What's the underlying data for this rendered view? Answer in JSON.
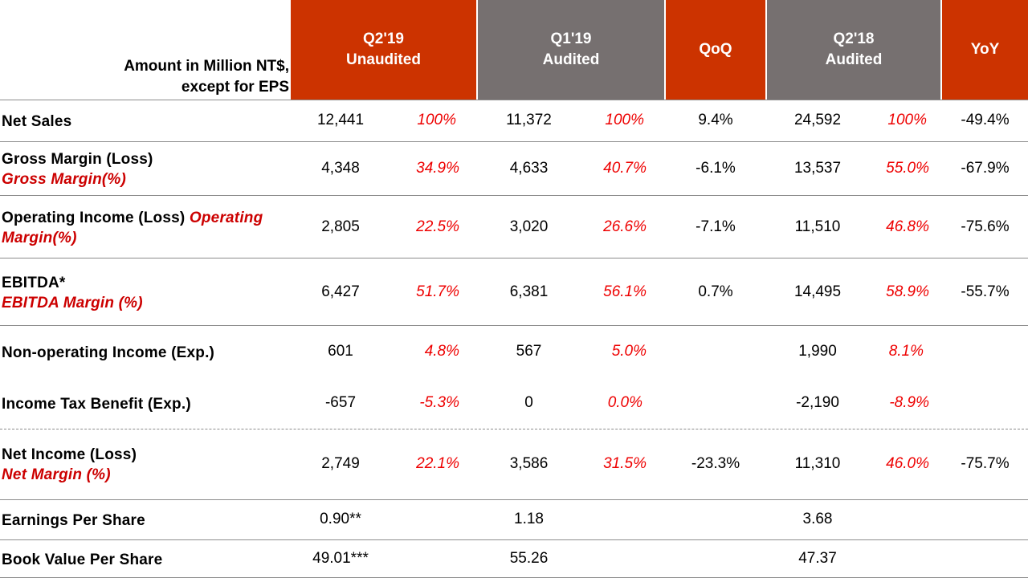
{
  "header": {
    "unit_line1": "Amount in Million  NT$,",
    "unit_line2": "except for EPS",
    "q2_19": "Q2'19\nUnaudited",
    "q1_19": "Q1'19\nAudited",
    "qoq": "QoQ",
    "q2_18": "Q2'18\nAudited",
    "yoy": "YoY"
  },
  "colors": {
    "header_red": "#cc3300",
    "header_gray": "#767070",
    "percent_red": "#ee0000"
  },
  "rows": [
    {
      "label": "Net Sales",
      "sub": "",
      "q2_19": "12,441",
      "q2_19_pct": "100%",
      "q1_19": "11,372",
      "q1_19_pct": "100%",
      "qoq": "9.4%",
      "q2_18": "24,592",
      "q2_18_pct": "100%",
      "yoy": "-49.4%"
    },
    {
      "label": "Gross Margin (Loss)",
      "sub": "Gross Margin(%)",
      "q2_19": "4,348",
      "q2_19_pct": "34.9%",
      "q1_19": "4,633",
      "q1_19_pct": "40.7%",
      "qoq": "-6.1%",
      "q2_18": "13,537",
      "q2_18_pct": "55.0%",
      "yoy": "-67.9%"
    },
    {
      "label": "Operating Income (Loss) ",
      "sub": "Operating Margin(%)",
      "q2_19": "2,805",
      "q2_19_pct": "22.5%",
      "q1_19": "3,020",
      "q1_19_pct": "26.6%",
      "qoq": "-7.1%",
      "q2_18": "11,510",
      "q2_18_pct": "46.8%",
      "yoy": "-75.6%"
    },
    {
      "label": "EBITDA*",
      "sub": "EBITDA Margin (%)",
      "q2_19": "6,427",
      "q2_19_pct": "51.7%",
      "q1_19": "6,381",
      "q1_19_pct": "56.1%",
      "qoq": "0.7%",
      "q2_18": "14,495",
      "q2_18_pct": "58.9%",
      "yoy": "-55.7%"
    },
    {
      "label": "Non-operating Income (Exp.)",
      "sub": "",
      "q2_19": "601",
      "q2_19_pct": "4.8%",
      "q1_19": "567",
      "q1_19_pct": "5.0%",
      "qoq": "",
      "q2_18": "1,990",
      "q2_18_pct": "8.1%",
      "yoy": ""
    },
    {
      "label": "Income Tax Benefit (Exp.)",
      "sub": "",
      "q2_19": "-657",
      "q2_19_pct": "-5.3%",
      "q1_19": "0",
      "q1_19_pct": "0.0%",
      "qoq": "",
      "q2_18": "-2,190",
      "q2_18_pct": "-8.9%",
      "yoy": ""
    },
    {
      "label": "Net Income (Loss)",
      "sub": "Net Margin (%)",
      "q2_19": "2,749",
      "q2_19_pct": "22.1%",
      "q1_19": "3,586",
      "q1_19_pct": "31.5%",
      "qoq": "-23.3%",
      "q2_18": "11,310",
      "q2_18_pct": "46.0%",
      "yoy": "-75.7%"
    },
    {
      "label": "Earnings Per Share",
      "sub": "",
      "q2_19": "0.90**",
      "q2_19_pct": "",
      "q1_19": "1.18",
      "q1_19_pct": "",
      "qoq": "",
      "q2_18": "3.68",
      "q2_18_pct": "",
      "yoy": ""
    },
    {
      "label": "Book Value Per Share",
      "sub": "",
      "q2_19": "49.01***",
      "q2_19_pct": "",
      "q1_19": "55.26",
      "q1_19_pct": "",
      "qoq": "",
      "q2_18": "47.37",
      "q2_18_pct": "",
      "yoy": ""
    }
  ]
}
